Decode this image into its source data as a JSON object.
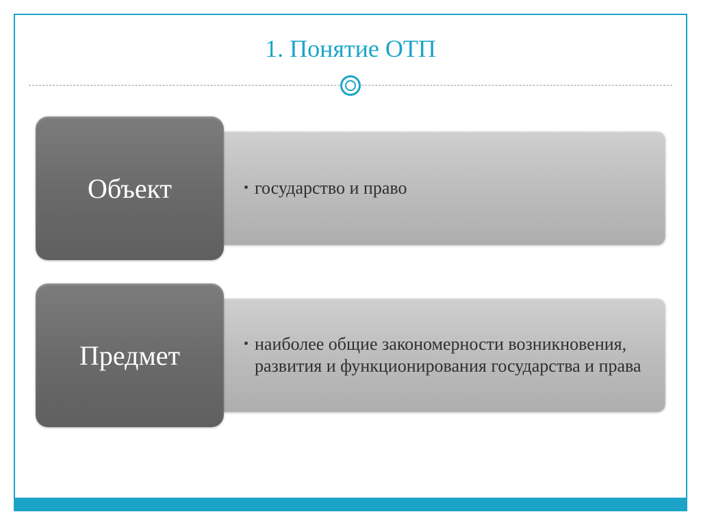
{
  "title": "1. Понятие ОТП",
  "accent_color": "#1ca4c8",
  "bottom_bar_color": "#1ca4c8",
  "rows": [
    {
      "label": "Объект",
      "description": "государство и право",
      "left_bg": "linear-gradient(to bottom, #7c7c7c 0%, #6b6b6b 50%, #5f5f5f 100%)",
      "right_bg": "linear-gradient(to bottom, #cfcfcf 0%, #bdbdbd 50%, #aeaeae 100%)",
      "text_color": "#2f2f2f"
    },
    {
      "label": "Предмет",
      "description": "наиболее общие закономерности возникновения, развития и функционирования государства и права",
      "left_bg": "linear-gradient(to bottom, #7c7c7c 0%, #6b6b6b 50%, #5f5f5f 100%)",
      "right_bg": "linear-gradient(to bottom, #cfcfcf 0%, #bdbdbd 50%, #aeaeae 100%)",
      "text_color": "#2f2f2f"
    }
  ]
}
